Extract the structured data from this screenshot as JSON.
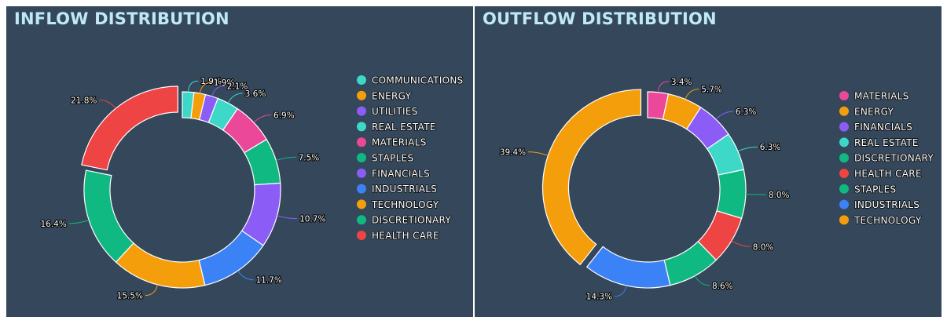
{
  "chart_data": [
    {
      "type": "pie",
      "title": "INFLOW DISTRIBUTION",
      "series": [
        {
          "name": "COMMUNICATIONS",
          "value": 1.9,
          "label": "1.9%",
          "color": "#3ed8c8"
        },
        {
          "name": "ENERGY",
          "value": 1.9,
          "label": "1.9%",
          "color": "#f59e0b"
        },
        {
          "name": "UTILITIES",
          "value": 2.1,
          "label": "2.1%",
          "color": "#8b5cf6"
        },
        {
          "name": "REAL ESTATE",
          "value": 3.6,
          "label": "3.6%",
          "color": "#3ed8c8"
        },
        {
          "name": "MATERIALS",
          "value": 6.9,
          "label": "6.9%",
          "color": "#ec4899"
        },
        {
          "name": "STAPLES",
          "value": 7.5,
          "label": "7.5%",
          "color": "#10b981"
        },
        {
          "name": "FINANCIALS",
          "value": 10.7,
          "label": "10.7%",
          "color": "#8b5cf6"
        },
        {
          "name": "INDUSTRIALS",
          "value": 11.7,
          "label": "11.7%",
          "color": "#3b82f6"
        },
        {
          "name": "TECHNOLOGY",
          "value": 15.5,
          "label": "15.5%",
          "color": "#f59e0b"
        },
        {
          "name": "DISCRETIONARY",
          "value": 16.4,
          "label": "16.4%",
          "color": "#10b981"
        },
        {
          "name": "HEALTH CARE",
          "value": 21.8,
          "label": "21.8%",
          "color": "#ef4444"
        }
      ],
      "legend_position": "right"
    },
    {
      "type": "pie",
      "title": "OUTFLOW DISTRIBUTION",
      "series": [
        {
          "name": "MATERIALS",
          "value": 3.4,
          "label": "3.4%",
          "color": "#ec4899"
        },
        {
          "name": "ENERGY",
          "value": 5.7,
          "label": "5.7%",
          "color": "#f59e0b"
        },
        {
          "name": "FINANCIALS",
          "value": 6.3,
          "label": "6.3%",
          "color": "#8b5cf6"
        },
        {
          "name": "REAL ESTATE",
          "value": 6.3,
          "label": "6.3%",
          "color": "#3ed8c8"
        },
        {
          "name": "DISCRETIONARY",
          "value": 8.0,
          "label": "8.0%",
          "color": "#10b981"
        },
        {
          "name": "HEALTH CARE",
          "value": 8.0,
          "label": "8.0%",
          "color": "#ef4444"
        },
        {
          "name": "STAPLES",
          "value": 8.6,
          "label": "8.6%",
          "color": "#10b981"
        },
        {
          "name": "INDUSTRIALS",
          "value": 14.3,
          "label": "14.3%",
          "color": "#3b82f6"
        },
        {
          "name": "TECHNOLOGY",
          "value": 39.4,
          "label": "39.4%",
          "color": "#f59e0b"
        }
      ],
      "legend_position": "right"
    }
  ]
}
